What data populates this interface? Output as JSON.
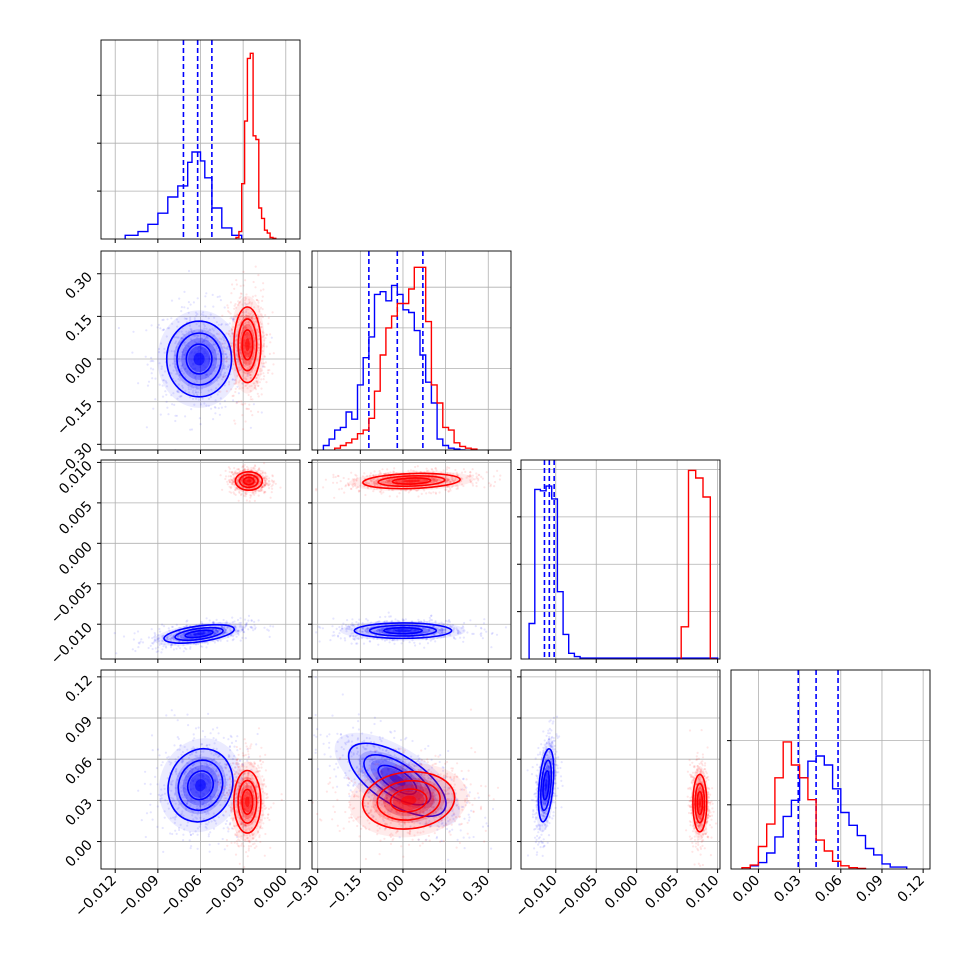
{
  "colors": {
    "series_a": "#0000ff",
    "series_b": "#ff0000",
    "grid": "#b0b0b0"
  },
  "chart_data": {
    "type": "corner",
    "title": "",
    "grid": true,
    "parameters": [
      {
        "range": [
          -0.013,
          0.001
        ],
        "ticks": [
          -0.012,
          -0.009,
          -0.006,
          -0.003,
          0.0
        ],
        "tick_labels": [
          "−0.012",
          "−0.009",
          "−0.006",
          "−0.003",
          "0.000"
        ],
        "hist_ymax": 0.27,
        "hist_yticks": [
          0.065,
          0.13,
          0.195
        ]
      },
      {
        "range": [
          -0.32,
          0.38
        ],
        "ticks": [
          -0.3,
          -0.15,
          0.0,
          0.15,
          0.3
        ],
        "tick_labels": [
          "−0.30",
          "−0.15",
          "0.00",
          "0.15",
          "0.30"
        ],
        "hist_ymax": 0.22,
        "hist_yticks": [
          0.045,
          0.09,
          0.135,
          0.18
        ]
      },
      {
        "range": [
          -0.0143,
          0.0103
        ],
        "ticks": [
          -0.01,
          -0.005,
          0.0,
          0.005,
          0.01
        ],
        "tick_labels": [
          "−0.010",
          "−0.005",
          "0.000",
          "0.005",
          "0.010"
        ],
        "hist_ymax": 0.42,
        "hist_yticks": [
          0.1,
          0.2,
          0.3,
          0.4
        ]
      },
      {
        "range": [
          -0.02,
          0.125
        ],
        "ticks": [
          0.0,
          0.03,
          0.06,
          0.09,
          0.12
        ],
        "tick_labels": [
          "0.00",
          "0.03",
          "0.06",
          "0.09",
          "0.12"
        ],
        "hist_ymax": 0.31,
        "hist_yticks": [
          0.1,
          0.2
        ]
      }
    ],
    "series": [
      {
        "color": "#0000ff",
        "quantile_lines": true,
        "hist": [
          {
            "edges": [
              -0.0113,
              -0.0104,
              -0.0097,
              -0.009,
              -0.0083,
              -0.0076,
              -0.0069,
              -0.0066,
              -0.006,
              -0.0057,
              -0.0052,
              -0.0045,
              -0.0038,
              -0.0031
            ],
            "values": [
              0.005,
              0.01,
              0.02,
              0.035,
              0.057,
              0.072,
              0.104,
              0.118,
              0.106,
              0.083,
              0.042,
              0.015,
              0.005
            ]
          },
          {
            "edges": [
              -0.28,
              -0.26,
              -0.24,
              -0.22,
              -0.2,
              -0.18,
              -0.16,
              -0.14,
              -0.12,
              -0.1,
              -0.08,
              -0.06,
              -0.04,
              -0.02,
              0.0,
              0.02,
              0.04,
              0.06,
              0.08,
              0.1,
              0.12,
              0.14,
              0.16,
              0.18,
              0.2,
              0.22
            ],
            "values": [
              0.005,
              0.012,
              0.022,
              0.025,
              0.042,
              0.034,
              0.072,
              0.102,
              0.125,
              0.172,
              0.175,
              0.165,
              0.182,
              0.172,
              0.155,
              0.152,
              0.132,
              0.105,
              0.075,
              0.052,
              0.012,
              0.005,
              0.002,
              0.001,
              0.0
            ]
          },
          {
            "edges": [
              -0.0133,
              -0.0126,
              -0.0119,
              -0.0112,
              -0.0105,
              -0.0098,
              -0.0091,
              -0.0084,
              -0.0077,
              -0.007,
              -0.006,
              -0.004,
              -0.002,
              0.0,
              0.002,
              0.004,
              0.006,
              0.01
            ],
            "values": [
              0.075,
              0.358,
              0.355,
              0.365,
              0.338,
              0.142,
              0.052,
              0.012,
              0.005,
              0.002,
              0.002,
              0.002,
              0.002,
              0.002,
              0.002,
              0.002,
              0.002
            ]
          },
          {
            "edges": [
              -0.006,
              0.0,
              0.006,
              0.012,
              0.018,
              0.024,
              0.03,
              0.036,
              0.042,
              0.048,
              0.054,
              0.06,
              0.066,
              0.072,
              0.078,
              0.084,
              0.09,
              0.096,
              0.108
            ],
            "values": [
              0.005,
              0.01,
              0.025,
              0.05,
              0.082,
              0.107,
              0.142,
              0.168,
              0.176,
              0.162,
              0.125,
              0.088,
              0.068,
              0.052,
              0.032,
              0.022,
              0.008,
              0.003
            ]
          }
        ],
        "quantiles": [
          [
            -0.0072,
            -0.0062,
            -0.0052
          ],
          [
            -0.12,
            -0.02,
            0.07
          ],
          [
            -0.0114,
            -0.0108,
            -0.0102
          ],
          [
            0.029,
            0.042,
            0.058
          ]
        ],
        "blobs": [
          {
            "px": 0,
            "py": 1,
            "center": [
              -0.0061,
              0.0
            ],
            "sd": [
              0.0012,
              0.07
            ],
            "rho": 0.0
          },
          {
            "px": 0,
            "py": 2,
            "center": [
              -0.0061,
              -0.0112
            ],
            "sd": [
              0.0013,
              0.0006
            ],
            "rho": 0.5
          },
          {
            "px": 1,
            "py": 2,
            "center": [
              0.0,
              -0.0108
            ],
            "sd": [
              0.09,
              0.0005
            ],
            "rho": 0.0
          },
          {
            "px": 0,
            "py": 3,
            "center": [
              -0.006,
              0.041
            ],
            "sd": [
              0.0012,
              0.014
            ],
            "rho": 0.1
          },
          {
            "px": 1,
            "py": 3,
            "center": [
              -0.02,
              0.045
            ],
            "sd": [
              0.09,
              0.014
            ],
            "rho": -0.65
          },
          {
            "px": 2,
            "py": 3,
            "center": [
              -0.0112,
              0.041
            ],
            "sd": [
              0.0005,
              0.014
            ],
            "rho": 0.4
          }
        ]
      },
      {
        "color": "#ff0000",
        "quantile_lines": false,
        "hist": [
          {
            "edges": [
              -0.0035,
              -0.0033,
              -0.0031,
              -0.0029,
              -0.0027,
              -0.0025,
              -0.0023,
              -0.0021,
              -0.0019,
              -0.0017,
              -0.0015,
              -0.0013,
              -0.0011,
              -0.0009,
              -0.0007
            ],
            "values": [
              0.002,
              0.01,
              0.075,
              0.16,
              0.245,
              0.252,
              0.14,
              0.135,
              0.042,
              0.028,
              0.012,
              0.008,
              0.002,
              0.001
            ]
          },
          {
            "edges": [
              -0.24,
              -0.22,
              -0.2,
              -0.18,
              -0.16,
              -0.14,
              -0.12,
              -0.1,
              -0.08,
              -0.06,
              -0.04,
              -0.02,
              0.0,
              0.02,
              0.04,
              0.06,
              0.08,
              0.1,
              0.12,
              0.14,
              0.16,
              0.18,
              0.2,
              0.22,
              0.24,
              0.26
            ],
            "values": [
              0.002,
              0.005,
              0.008,
              0.012,
              0.018,
              0.022,
              0.035,
              0.065,
              0.105,
              0.135,
              0.148,
              0.162,
              0.162,
              0.178,
              0.202,
              0.202,
              0.142,
              0.072,
              0.052,
              0.025,
              0.022,
              0.008,
              0.004,
              0.002,
              0.001
            ]
          },
          {
            "edges": [
              0.0055,
              0.0064,
              0.0073,
              0.0082,
              0.0091,
              0.0098
            ],
            "values": [
              0.068,
              0.398,
              0.382,
              0.342,
              0.0
            ]
          },
          {
            "edges": [
              -0.012,
              -0.006,
              0.0,
              0.006,
              0.012,
              0.018,
              0.024,
              0.03,
              0.036,
              0.042,
              0.048,
              0.054,
              0.06,
              0.066,
              0.072,
              0.078
            ],
            "values": [
              0.002,
              0.006,
              0.035,
              0.07,
              0.142,
              0.198,
              0.162,
              0.142,
              0.108,
              0.045,
              0.028,
              0.012,
              0.005,
              0.002,
              0.001
            ]
          }
        ],
        "blobs": [
          {
            "px": 0,
            "py": 1,
            "center": [
              -0.0027,
              0.05
            ],
            "sd": [
              0.0005,
              0.07
            ],
            "rho": 0.0
          },
          {
            "px": 0,
            "py": 2,
            "center": [
              -0.0026,
              0.0077
            ],
            "sd": [
              0.0005,
              0.0006
            ],
            "rho": 0.0
          },
          {
            "px": 1,
            "py": 2,
            "center": [
              0.03,
              0.0077
            ],
            "sd": [
              0.09,
              0.0005
            ],
            "rho": 0.2
          },
          {
            "px": 0,
            "py": 3,
            "center": [
              -0.0027,
              0.029
            ],
            "sd": [
              0.0005,
              0.012
            ],
            "rho": 0.0
          },
          {
            "px": 1,
            "py": 3,
            "center": [
              0.02,
              0.03
            ],
            "sd": [
              0.085,
              0.011
            ],
            "rho": 0.1
          },
          {
            "px": 2,
            "py": 3,
            "center": [
              0.0078,
              0.028
            ],
            "sd": [
              0.00045,
              0.011
            ],
            "rho": 0.0
          }
        ]
      }
    ]
  }
}
